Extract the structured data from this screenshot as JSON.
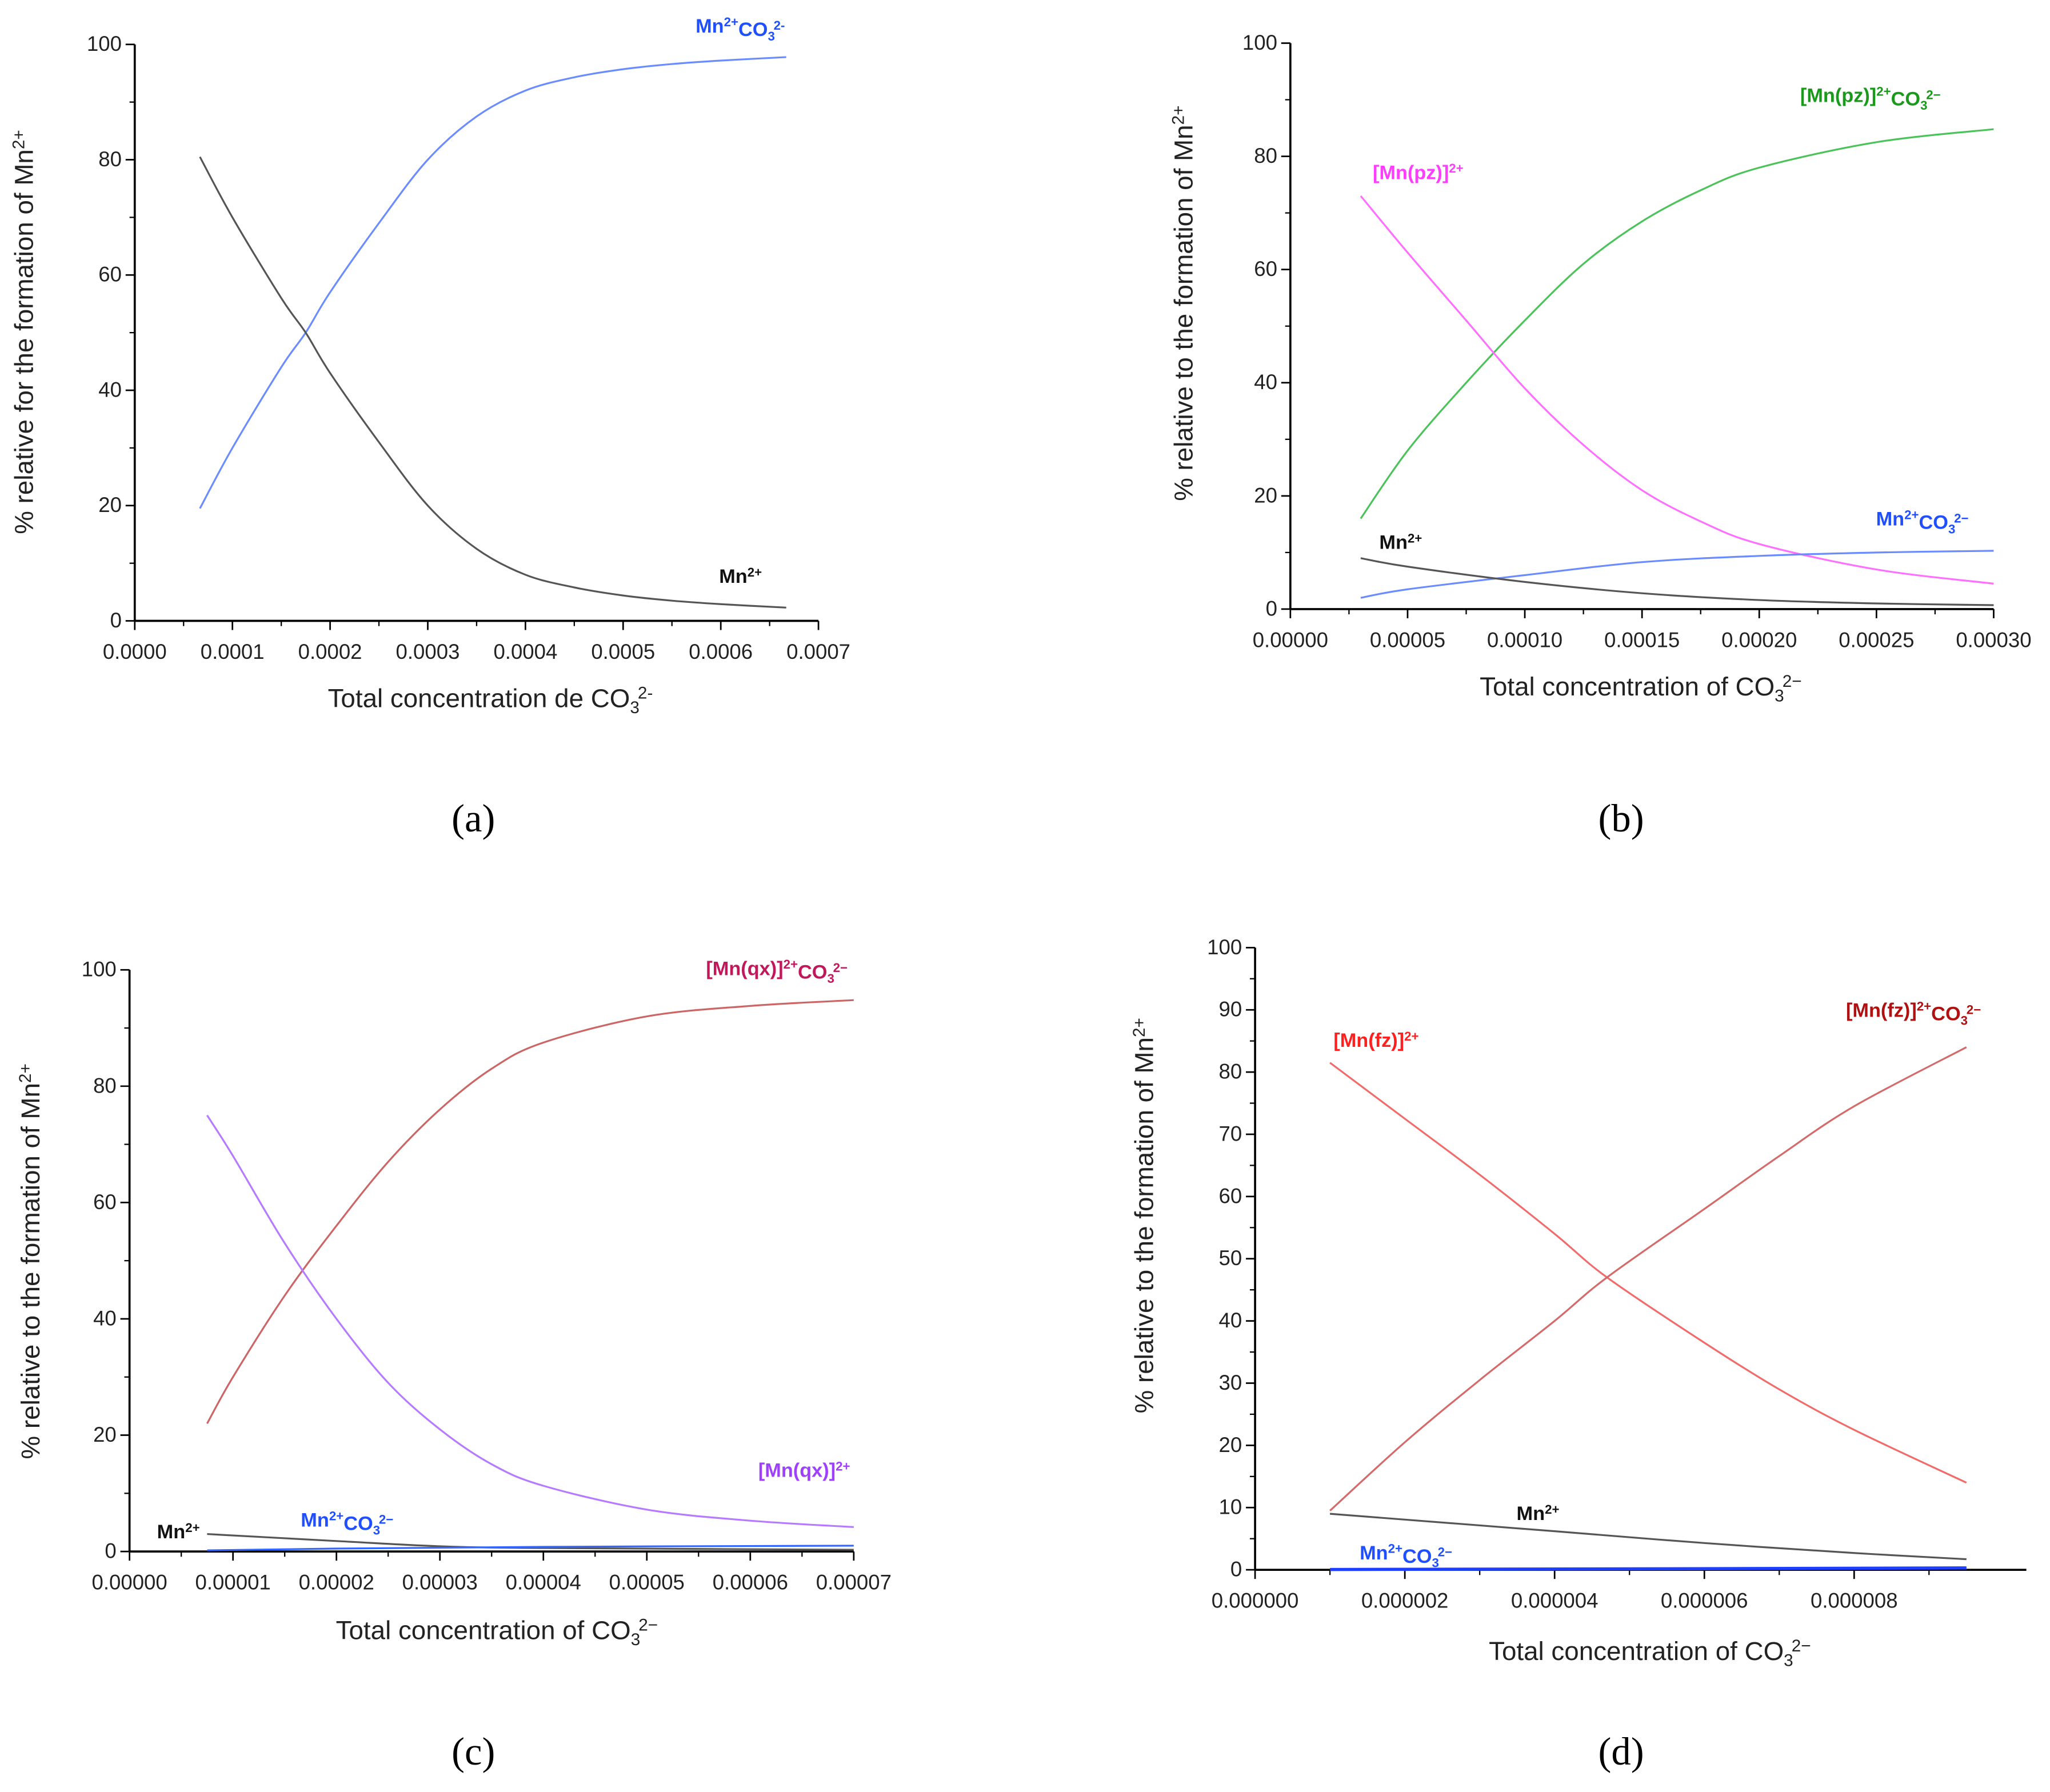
{
  "chart_data": [
    {
      "type": "line",
      "panel_label": "(a)",
      "xlabel": [
        [
          "Total concentration de CO",
          ""
        ],
        [
          "3",
          "sub"
        ],
        [
          "2-",
          "sup"
        ]
      ],
      "ylabel": [
        [
          "% relative for the formation of Mn",
          ""
        ],
        [
          "2+",
          "sup"
        ]
      ],
      "xlim": [
        0,
        0.0007
      ],
      "ylim": [
        0,
        100
      ],
      "xticks": [
        0,
        0.0001,
        0.0002,
        0.0003,
        0.0004,
        0.0005,
        0.0006,
        0.0007
      ],
      "xtick_labels": [
        "0.0000",
        "0.0001",
        "0.0002",
        "0.0003",
        "0.0004",
        "0.0005",
        "0.0006",
        "0.0007"
      ],
      "yticks": [
        0,
        20,
        40,
        60,
        80,
        100
      ],
      "ytick_labels": [
        "0",
        "20",
        "40",
        "60",
        "80",
        "100"
      ],
      "series": [
        {
          "name": [
            [
              "Mn",
              ""
            ],
            [
              "2+",
              "sup"
            ],
            [
              "CO",
              ""
            ],
            [
              "3",
              "sub"
            ],
            [
              "2-",
              "sup"
            ]
          ],
          "color": "#6b8cff",
          "label_color": "#1f4fff",
          "x": [
            6.67e-05,
            0.0001,
            0.00015,
            0.000175,
            0.0002,
            0.00025,
            0.0003,
            0.00035,
            0.0004,
            0.00045,
            0.0005,
            0.00055,
            0.0006,
            0.000667
          ],
          "y": [
            19.5,
            30,
            44,
            50,
            57,
            69,
            80,
            87.5,
            92,
            94.3,
            95.7,
            96.6,
            97.2,
            97.8
          ]
        },
        {
          "name": [
            [
              "Mn",
              ""
            ],
            [
              "2+",
              "sup"
            ]
          ],
          "color": "#555555",
          "label_color": "#111111",
          "x": [
            6.67e-05,
            0.0001,
            0.00015,
            0.000175,
            0.0002,
            0.00025,
            0.0003,
            0.00035,
            0.0004,
            0.00045,
            0.0005,
            0.00055,
            0.0006,
            0.000667
          ],
          "y": [
            80.5,
            70,
            56,
            50,
            43,
            31,
            20,
            12.5,
            8,
            5.8,
            4.4,
            3.5,
            2.9,
            2.3
          ]
        }
      ]
    },
    {
      "type": "line",
      "panel_label": "(b)",
      "xlabel": [
        [
          "Total concentration of CO",
          ""
        ],
        [
          "3",
          "sub"
        ],
        [
          "2−",
          "sup"
        ]
      ],
      "ylabel": [
        [
          "% relative to the formation of Mn",
          ""
        ],
        [
          "2+",
          "sup"
        ]
      ],
      "xlim": [
        0,
        0.0003
      ],
      "ylim": [
        0,
        100
      ],
      "xticks": [
        0,
        5e-05,
        0.0001,
        0.00015,
        0.0002,
        0.00025,
        0.0003
      ],
      "xtick_labels": [
        "0.00000",
        "0.00005",
        "0.00010",
        "0.00015",
        "0.00020",
        "0.00025",
        "0.00030"
      ],
      "yticks": [
        0,
        20,
        40,
        60,
        80,
        100
      ],
      "ytick_labels": [
        "0",
        "20",
        "40",
        "60",
        "80",
        "100"
      ],
      "series": [
        {
          "name": [
            [
              "[Mn(pz)]",
              ""
            ],
            [
              "2+",
              "sup"
            ],
            [
              "CO",
              ""
            ],
            [
              "3",
              "sub"
            ],
            [
              "2−",
              "sup"
            ]
          ],
          "color": "#4cc35a",
          "label_color": "#1a9a1a",
          "x": [
            3e-05,
            5e-05,
            7.5e-05,
            0.0001,
            0.000125,
            0.00015,
            0.000175,
            0.0002,
            0.00025,
            0.0003
          ],
          "y": [
            16,
            28,
            40,
            51,
            61,
            68.5,
            74,
            78,
            82.5,
            84.8
          ]
        },
        {
          "name": [
            [
              "[Mn(pz)]",
              ""
            ],
            [
              "2+",
              "sup"
            ]
          ],
          "color": "#ff6fff",
          "label_color": "#ff3cff",
          "x": [
            3e-05,
            5e-05,
            7.5e-05,
            0.0001,
            0.000125,
            0.00015,
            0.000175,
            0.0002,
            0.00025,
            0.0003
          ],
          "y": [
            73,
            63,
            51,
            39,
            29,
            21,
            15.5,
            11.5,
            7,
            4.5
          ]
        },
        {
          "name": [
            [
              "Mn",
              ""
            ],
            [
              "2+",
              "sup"
            ],
            [
              "CO",
              ""
            ],
            [
              "3",
              "sub"
            ],
            [
              "2−",
              "sup"
            ]
          ],
          "color": "#6b8cff",
          "label_color": "#1f4fff",
          "x": [
            3e-05,
            5e-05,
            0.0001,
            0.00015,
            0.0002,
            0.00025,
            0.0003
          ],
          "y": [
            2,
            3.5,
            6,
            8.3,
            9.4,
            10,
            10.3
          ]
        },
        {
          "name": [
            [
              "Mn",
              ""
            ],
            [
              "2+",
              "sup"
            ]
          ],
          "color": "#555555",
          "label_color": "#111111",
          "x": [
            3e-05,
            5e-05,
            0.0001,
            0.00015,
            0.0002,
            0.00025,
            0.0003
          ],
          "y": [
            9,
            7.5,
            4.8,
            2.8,
            1.6,
            1,
            0.7
          ]
        }
      ]
    },
    {
      "type": "line",
      "panel_label": "(c)",
      "xlabel": [
        [
          "Total concentration of CO",
          ""
        ],
        [
          "3",
          "sub"
        ],
        [
          "2−",
          "sup"
        ]
      ],
      "ylabel": [
        [
          "% relative to the formation of Mn",
          ""
        ],
        [
          "2+",
          "sup"
        ]
      ],
      "xlim": [
        0,
        7e-05
      ],
      "ylim": [
        0,
        100
      ],
      "xticks": [
        0,
        1e-05,
        2e-05,
        3e-05,
        4e-05,
        5e-05,
        6e-05,
        7e-05
      ],
      "xtick_labels": [
        "0.00000",
        "0.00001",
        "0.00002",
        "0.00003",
        "0.00004",
        "0.00005",
        "0.00006",
        "0.00007"
      ],
      "yticks": [
        0,
        20,
        40,
        60,
        80,
        100
      ],
      "ytick_labels": [
        "0",
        "20",
        "40",
        "60",
        "80",
        "100"
      ],
      "series": [
        {
          "name": [
            [
              "[Mn(qx)]",
              ""
            ],
            [
              "2+",
              "sup"
            ],
            [
              "CO",
              ""
            ],
            [
              "3",
              "sub"
            ],
            [
              "2−",
              "sup"
            ]
          ],
          "color": "#cc6666",
          "label_color": "#c0185a",
          "x": [
            7.5e-06,
            1e-05,
            1.5e-05,
            2e-05,
            2.5e-05,
            3e-05,
            3.5e-05,
            4e-05,
            5e-05,
            6e-05,
            7e-05
          ],
          "y": [
            22,
            30,
            44,
            56,
            67,
            76,
            83,
            87.5,
            92,
            93.8,
            94.8
          ]
        },
        {
          "name": [
            [
              "[Mn(qx)]",
              ""
            ],
            [
              "2+",
              "sup"
            ]
          ],
          "color": "#b57aff",
          "label_color": "#a040ff",
          "x": [
            7.5e-06,
            1e-05,
            1.5e-05,
            2e-05,
            2.5e-05,
            3e-05,
            3.5e-05,
            4e-05,
            5e-05,
            6e-05,
            7e-05
          ],
          "y": [
            75,
            68,
            53,
            40,
            29,
            21,
            15,
            11.3,
            7.2,
            5.3,
            4.2
          ]
        },
        {
          "name": [
            [
              "Mn",
              ""
            ],
            [
              "2+",
              "sup"
            ]
          ],
          "color": "#555555",
          "label_color": "#111111",
          "x": [
            7.5e-06,
            2e-05,
            3e-05,
            4e-05,
            7e-05
          ],
          "y": [
            3,
            1.8,
            0.9,
            0.6,
            0.3
          ]
        },
        {
          "name": [
            [
              "Mn",
              ""
            ],
            [
              "2+",
              "sup"
            ],
            [
              "CO",
              ""
            ],
            [
              "3",
              "sub"
            ],
            [
              "2−",
              "sup"
            ]
          ],
          "color": "#3366ff",
          "label_color": "#1f4fff",
          "x": [
            7.5e-06,
            2e-05,
            4e-05,
            7e-05
          ],
          "y": [
            0.2,
            0.5,
            0.8,
            1
          ]
        }
      ]
    },
    {
      "type": "line",
      "panel_label": "(d)",
      "xlabel": [
        [
          "Total concentration of CO",
          ""
        ],
        [
          "3",
          "sub"
        ],
        [
          "2−",
          "sup"
        ]
      ],
      "ylabel": [
        [
          "% relative to the formation of Mn",
          ""
        ],
        [
          "2+",
          "sup"
        ]
      ],
      "xlim": [
        0,
        1.03e-05
      ],
      "ylim": [
        0,
        100
      ],
      "xticks": [
        0,
        2e-06,
        4e-06,
        6e-06,
        8e-06
      ],
      "xtick_labels": [
        "0.000000",
        "0.000002",
        "0.000004",
        "0.000006",
        "0.000008"
      ],
      "yticks": [
        0,
        10,
        20,
        30,
        40,
        50,
        60,
        70,
        80,
        90,
        100
      ],
      "ytick_labels": [
        "0",
        "10",
        "20",
        "30",
        "40",
        "50",
        "60",
        "70",
        "80",
        "90",
        "100"
      ],
      "series": [
        {
          "name": [
            [
              "[Mn(fz)]",
              ""
            ],
            [
              "2+",
              "sup"
            ]
          ],
          "color": "#f26b6b",
          "label_color": "#ff2020",
          "x": [
            1e-06,
            2e-06,
            3e-06,
            4e-06,
            4.7e-06,
            6e-06,
            7e-06,
            8e-06,
            9.5e-06
          ],
          "y": [
            81.5,
            72.5,
            63.5,
            54,
            47,
            36.5,
            29,
            22.5,
            14
          ]
        },
        {
          "name": [
            [
              "[Mn(fz)]",
              ""
            ],
            [
              "2+",
              "sup"
            ],
            [
              "CO",
              ""
            ],
            [
              "3",
              "sub"
            ],
            [
              "2−",
              "sup"
            ]
          ],
          "color": "#d46a6a",
          "label_color": "#b01010",
          "x": [
            1e-06,
            2e-06,
            3e-06,
            4e-06,
            4.7e-06,
            6e-06,
            7e-06,
            8e-06,
            9.5e-06
          ],
          "y": [
            9.5,
            20.5,
            30.5,
            40,
            47,
            58,
            66.5,
            74.5,
            84
          ]
        },
        {
          "name": [
            [
              "Mn",
              ""
            ],
            [
              "2+",
              "sup"
            ]
          ],
          "color": "#555555",
          "label_color": "#111111",
          "x": [
            1e-06,
            4e-06,
            6e-06,
            8e-06,
            9.5e-06
          ],
          "y": [
            9,
            6.2,
            4.3,
            2.7,
            1.7
          ]
        },
        {
          "name": [
            [
              "Mn",
              ""
            ],
            [
              "2+",
              "sup"
            ],
            [
              "CO",
              ""
            ],
            [
              "3",
              "sub"
            ],
            [
              "2−",
              "sup"
            ]
          ],
          "color": "#1f3fff",
          "label_color": "#1f4fff",
          "x": [
            1e-06,
            5e-06,
            9.5e-06
          ],
          "y": [
            0.05,
            0.15,
            0.3
          ]
        }
      ]
    }
  ]
}
